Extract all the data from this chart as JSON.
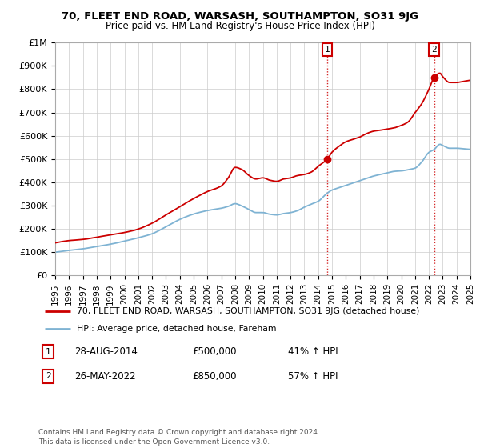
{
  "title": "70, FLEET END ROAD, WARSASH, SOUTHAMPTON, SO31 9JG",
  "subtitle": "Price paid vs. HM Land Registry's House Price Index (HPI)",
  "bg_color": "#ffffff",
  "plot_bg_color": "#ffffff",
  "grid_color": "#cccccc",
  "red_color": "#cc0000",
  "blue_color": "#7fb3d3",
  "ylim": [
    0,
    1000000
  ],
  "yticks": [
    0,
    100000,
    200000,
    300000,
    400000,
    500000,
    600000,
    700000,
    800000,
    900000,
    1000000
  ],
  "ytick_labels": [
    "£0",
    "£100K",
    "£200K",
    "£300K",
    "£400K",
    "£500K",
    "£600K",
    "£700K",
    "£800K",
    "£900K",
    "£1M"
  ],
  "sale1_date": 2014.66,
  "sale1_price": 500000,
  "sale1_label": "28-AUG-2014",
  "sale1_text": "£500,000",
  "sale1_hpi": "41% ↑ HPI",
  "sale2_date": 2022.37,
  "sale2_price": 850000,
  "sale2_label": "26-MAY-2022",
  "sale2_text": "£850,000",
  "sale2_hpi": "57% ↑ HPI",
  "legend_label1": "70, FLEET END ROAD, WARSASH, SOUTHAMPTON, SO31 9JG (detached house)",
  "legend_label2": "HPI: Average price, detached house, Fareham",
  "footnote": "Contains HM Land Registry data © Crown copyright and database right 2024.\nThis data is licensed under the Open Government Licence v3.0.",
  "xmin": 1995,
  "xmax": 2025
}
